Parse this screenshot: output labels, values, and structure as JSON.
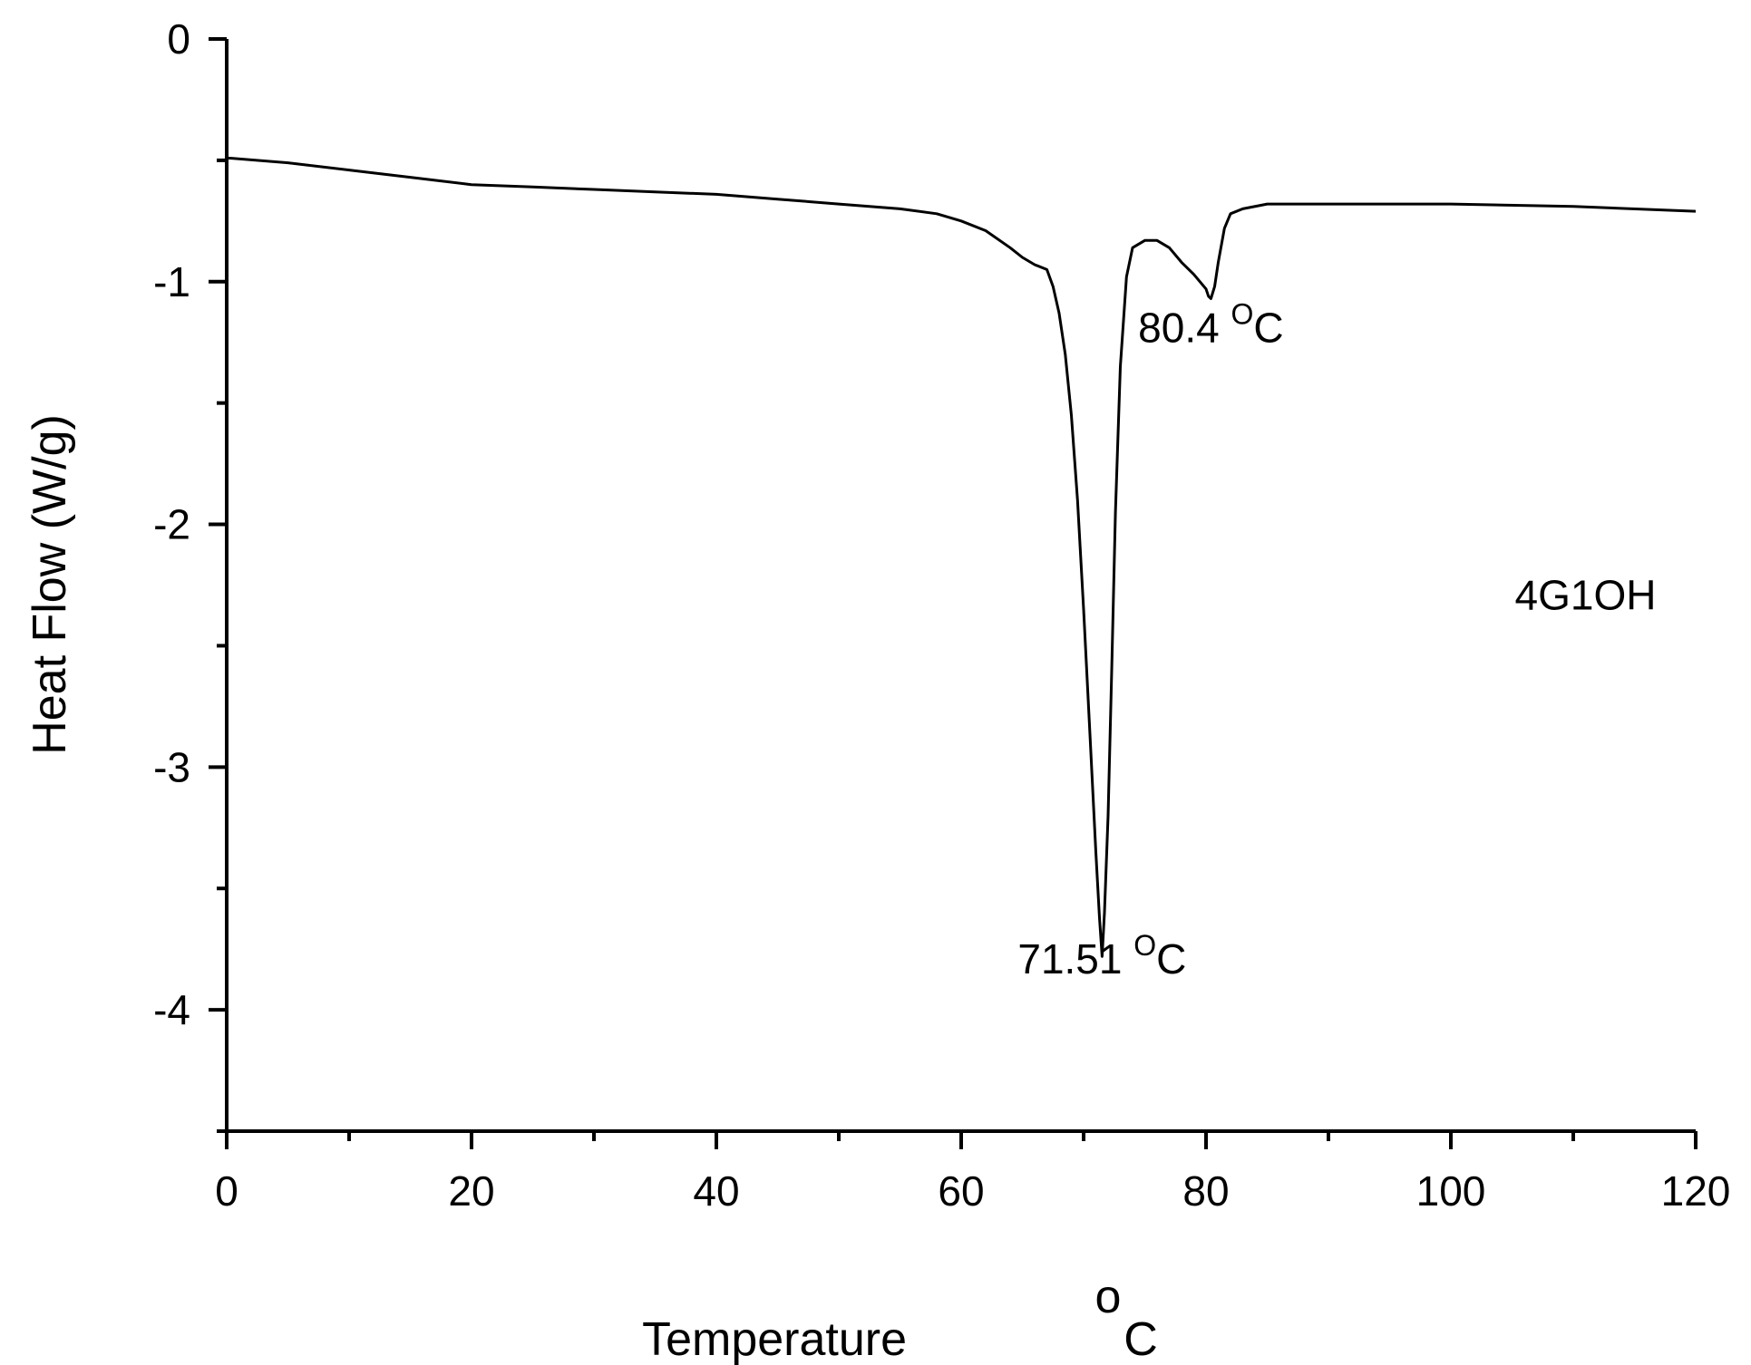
{
  "chart_data": {
    "type": "line",
    "title": "",
    "xlabel": "Temperature",
    "xlabel_unit_sup": "o",
    "xlabel_unit": "C",
    "ylabel": "Heat Flow (W/g)",
    "xlim": [
      0,
      120
    ],
    "ylim": [
      -4.5,
      0
    ],
    "xticks": [
      0,
      20,
      40,
      60,
      80,
      100,
      120
    ],
    "xtick_labels": [
      "0",
      "20",
      "40",
      "60",
      "80",
      "100",
      "120"
    ],
    "xminor_ticks": [
      10,
      30,
      50,
      70,
      90,
      110
    ],
    "yticks": [
      0,
      -1,
      -2,
      -3,
      -4
    ],
    "ytick_labels": [
      "0",
      "-1",
      "-2",
      "-3",
      "-4"
    ],
    "yminor_ticks": [
      -0.5,
      -1.5,
      -2.5,
      -3.5,
      -4.5
    ],
    "grid": false,
    "series": [
      {
        "color": "#000000",
        "x": [
          0,
          5,
          10,
          15,
          20,
          25,
          30,
          35,
          40,
          45,
          50,
          55,
          58,
          60,
          62,
          64,
          65,
          66,
          67,
          67.5,
          68,
          68.5,
          69,
          69.5,
          70,
          70.5,
          71,
          71.3,
          71.51,
          71.7,
          72,
          72.3,
          72.6,
          73,
          73.5,
          74,
          75,
          76,
          77,
          78,
          79,
          79.5,
          80,
          80.2,
          80.4,
          80.7,
          81,
          81.5,
          82,
          83,
          85,
          90,
          100,
          110,
          120
        ],
        "y": [
          -0.49,
          -0.51,
          -0.54,
          -0.57,
          -0.6,
          -0.61,
          -0.62,
          -0.63,
          -0.64,
          -0.66,
          -0.68,
          -0.7,
          -0.72,
          -0.75,
          -0.79,
          -0.86,
          -0.9,
          -0.93,
          -0.95,
          -1.02,
          -1.13,
          -1.3,
          -1.55,
          -1.9,
          -2.35,
          -2.85,
          -3.35,
          -3.62,
          -3.78,
          -3.6,
          -3.2,
          -2.6,
          -1.95,
          -1.35,
          -0.98,
          -0.86,
          -0.83,
          -0.83,
          -0.86,
          -0.92,
          -0.97,
          -1.0,
          -1.03,
          -1.06,
          -1.07,
          -1.02,
          -0.92,
          -0.78,
          -0.72,
          -0.7,
          -0.68,
          -0.68,
          -0.68,
          -0.69,
          -0.71
        ]
      }
    ],
    "annotations": [
      {
        "label": "71.51",
        "sup": "O",
        "unit": "C",
        "x": 71.51,
        "y": -3.85
      },
      {
        "label": "80.4",
        "sup": "O",
        "unit": "C",
        "x": 80.4,
        "y": -1.25
      },
      {
        "label": "4G1OH",
        "x": 111,
        "y": -2.35
      }
    ]
  }
}
